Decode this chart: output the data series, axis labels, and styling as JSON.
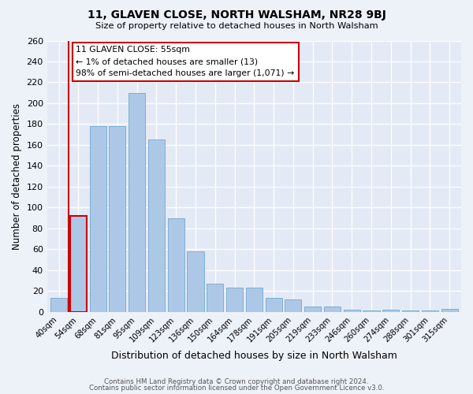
{
  "title": "11, GLAVEN CLOSE, NORTH WALSHAM, NR28 9BJ",
  "subtitle": "Size of property relative to detached houses in North Walsham",
  "xlabel": "Distribution of detached houses by size in North Walsham",
  "ylabel": "Number of detached properties",
  "footer_line1": "Contains HM Land Registry data © Crown copyright and database right 2024.",
  "footer_line2": "Contains public sector information licensed under the Open Government Licence v3.0.",
  "bar_labels": [
    "40sqm",
    "54sqm",
    "68sqm",
    "81sqm",
    "95sqm",
    "109sqm",
    "123sqm",
    "136sqm",
    "150sqm",
    "164sqm",
    "178sqm",
    "191sqm",
    "205sqm",
    "219sqm",
    "233sqm",
    "246sqm",
    "260sqm",
    "274sqm",
    "288sqm",
    "301sqm",
    "315sqm"
  ],
  "bar_values": [
    13,
    92,
    178,
    178,
    210,
    165,
    90,
    58,
    27,
    23,
    23,
    13,
    12,
    5,
    5,
    2,
    1,
    2,
    1,
    1,
    3
  ],
  "bar_color": "#adc8e6",
  "bar_edge_color": "#7aafd4",
  "highlight_bar_index": 1,
  "highlight_bar_edge_color": "#cc0000",
  "property_line_color": "#cc0000",
  "ylim_max": 260,
  "yticks": [
    0,
    20,
    40,
    60,
    80,
    100,
    120,
    140,
    160,
    180,
    200,
    220,
    240,
    260
  ],
  "annotation_title": "11 GLAVEN CLOSE: 55sqm",
  "annotation_line1": "← 1% of detached houses are smaller (13)",
  "annotation_line2": "98% of semi-detached houses are larger (1,071) →",
  "annotation_box_edge": "#cc0000",
  "background_color": "#edf2f9",
  "plot_bg_color": "#e4eaf5"
}
